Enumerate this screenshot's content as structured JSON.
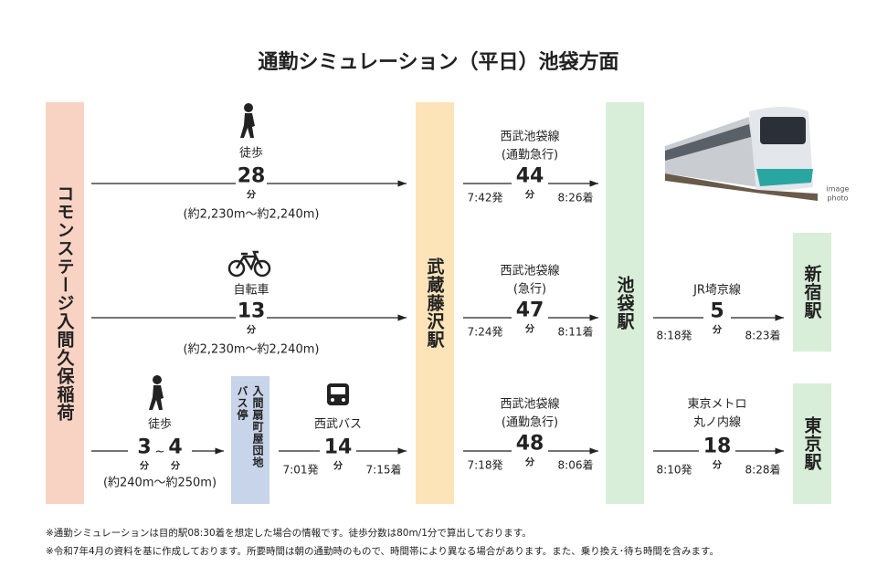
{
  "title": "通勤シミュレーション（平日）池袋方面",
  "stations": {
    "origin": "コモンステージ入間久保稲荷",
    "musashi_fujisawa": "武蔵藤沢駅",
    "ikebukuro": "池袋駅",
    "shinjuku": "新宿駅",
    "tokyo": "東京駅",
    "bus_stop": [
      "入間扇町屋団地",
      "バス停"
    ]
  },
  "walk": {
    "label": "徒歩",
    "minutes": 28,
    "unit": "分",
    "distance": "(約2,230m～約2,240m)"
  },
  "bike": {
    "label": "自転車",
    "minutes": 13,
    "unit": "分",
    "distance": "(約2,230m～約2,240m)"
  },
  "walk_short": {
    "label": "徒歩",
    "min_from": 3,
    "sep": "~",
    "min_to": 4,
    "unit": "分",
    "distance": "(約240m～約250m)"
  },
  "bus": {
    "label": "西武バス",
    "minutes": 14,
    "unit": "分",
    "depart": "7:01発",
    "arrive": "7:15着"
  },
  "trains": [
    {
      "line": "西武池袋線",
      "kind": "(通勤急行)",
      "minutes": 44,
      "unit": "分",
      "depart": "7:42発",
      "arrive": "8:26着"
    },
    {
      "line": "西武池袋線",
      "kind": "(急行)",
      "minutes": 47,
      "unit": "分",
      "depart": "7:24発",
      "arrive": "8:11着"
    },
    {
      "line": "西武池袋線",
      "kind": "(通勤急行)",
      "minutes": 48,
      "unit": "分",
      "depart": "7:18発",
      "arrive": "8:06着"
    }
  ],
  "transfers": [
    {
      "line": "JR埼京線",
      "minutes": 5,
      "unit": "分",
      "depart": "8:18発",
      "arrive": "8:23着"
    },
    {
      "line": "東京メトロ",
      "line2": "丸ノ内線",
      "minutes": 18,
      "unit": "分",
      "depart": "8:10発",
      "arrive": "8:28着"
    }
  ],
  "image_note": [
    "image",
    "photo"
  ],
  "notes": [
    "※通勤シミュレーションは目的駅08:30着を想定した場合の情報です。徒歩分数は80m/1分で算出しております。",
    "※令和7年4月の資料を基に作成しております。所要時間は朝の通勤時のもので、時間帯により異なる場合があります。また、乗り換え･待ち時間を含みます。"
  ]
}
